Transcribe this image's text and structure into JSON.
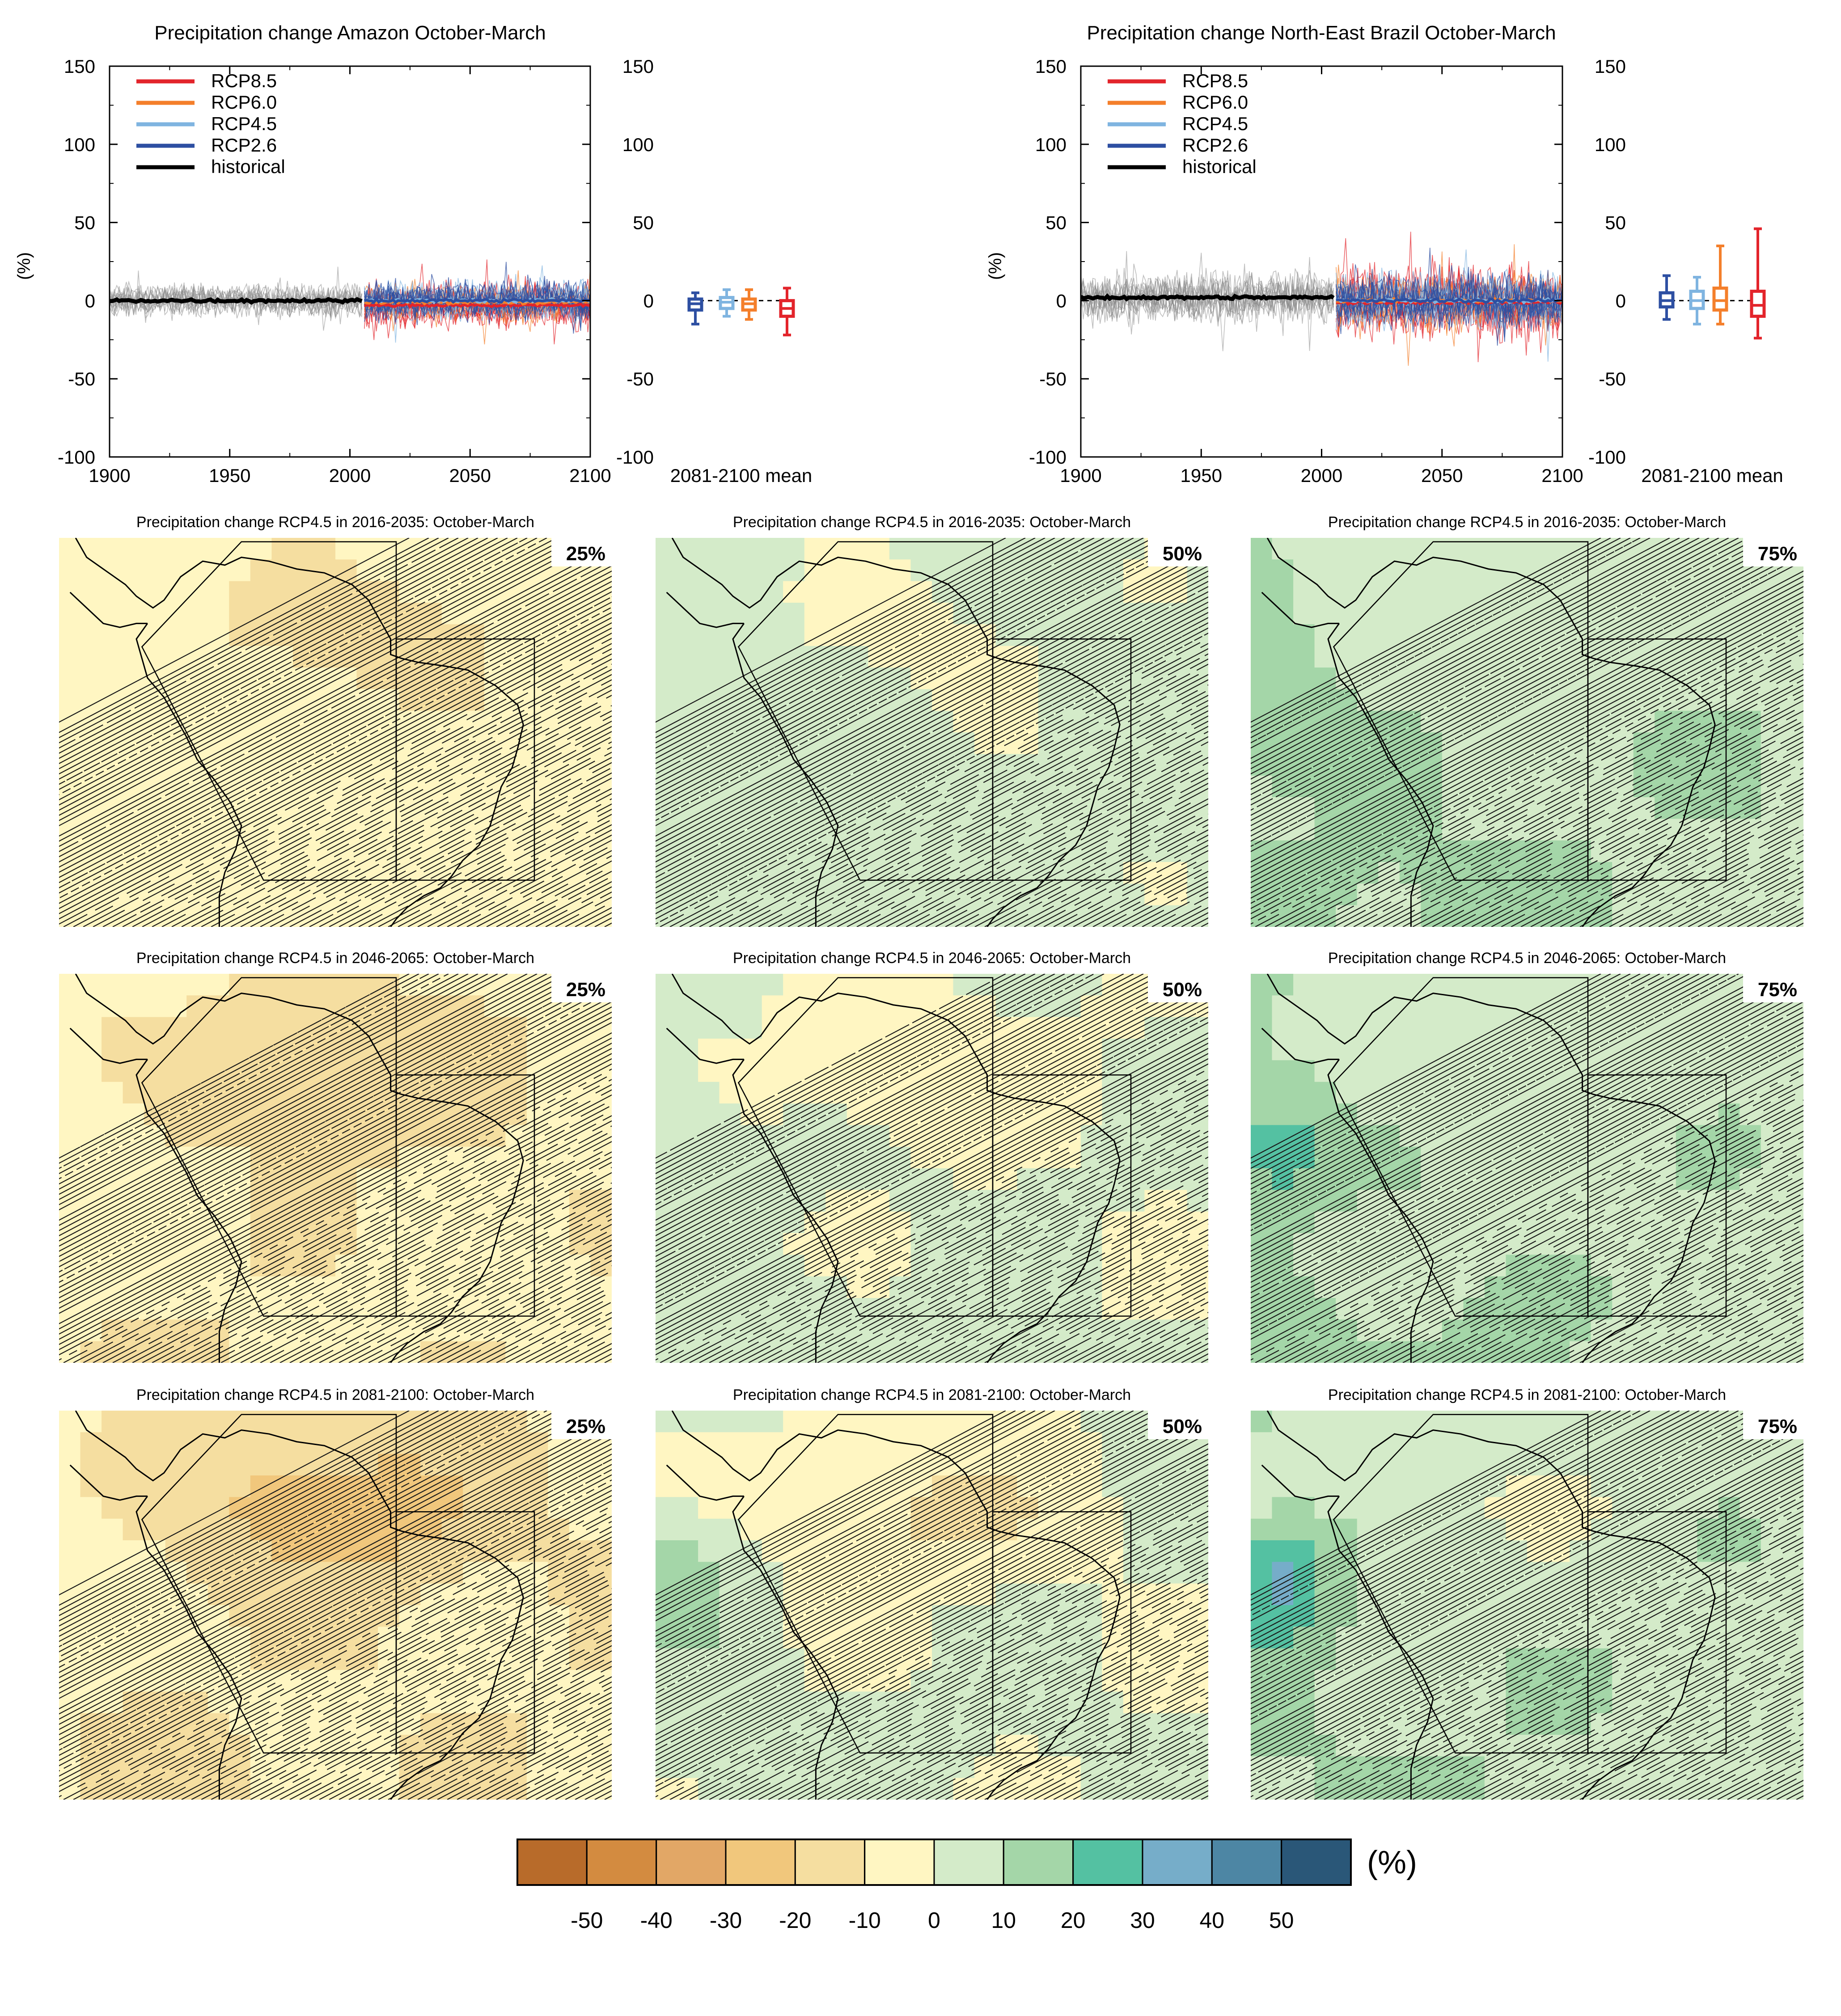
{
  "chart_data": [
    {
      "type": "line",
      "title": "Precipitation change Amazon October-March",
      "ylabel": "(%)",
      "xlim": [
        1900,
        2100
      ],
      "ylim": [
        -100,
        150
      ],
      "x_ticks": [
        "1900",
        "1950",
        "2000",
        "2050",
        "2100"
      ],
      "y_ticks": [
        "-100",
        "-50",
        "0",
        "50",
        "100",
        "150"
      ],
      "legend": {
        "placement": "top-left",
        "entries": [
          "RCP8.5",
          "RCP6.0",
          "RCP4.5",
          "RCP2.6",
          "historical"
        ]
      },
      "series": [
        {
          "name": "historical",
          "x_range": [
            1900,
            2005
          ],
          "mean": 0,
          "spread": 18
        },
        {
          "name": "RCP2.6",
          "x_range": [
            2006,
            2100
          ],
          "mean": 0,
          "spread": 22
        },
        {
          "name": "RCP4.5",
          "x_range": [
            2006,
            2100
          ],
          "mean": 0,
          "spread": 22
        },
        {
          "name": "RCP6.0",
          "x_range": [
            2006,
            2100
          ],
          "mean": -1,
          "spread": 22
        },
        {
          "name": "RCP8.5",
          "x_range": [
            2006,
            2100
          ],
          "mean": -3,
          "spread": 26
        }
      ],
      "boxplot_label": "2081-2100 mean",
      "boxplots": [
        {
          "name": "RCP2.6",
          "whisker": [
            -15,
            5
          ],
          "box": [
            -6,
            1
          ],
          "median": -2
        },
        {
          "name": "RCP4.5",
          "whisker": [
            -10,
            7
          ],
          "box": [
            -5,
            2
          ],
          "median": -1
        },
        {
          "name": "RCP6.0",
          "whisker": [
            -12,
            7
          ],
          "box": [
            -6,
            1
          ],
          "median": -2
        },
        {
          "name": "RCP8.5",
          "whisker": [
            -22,
            8
          ],
          "box": [
            -10,
            0
          ],
          "median": -5
        }
      ]
    },
    {
      "type": "line",
      "title": "Precipitation change North-East Brazil October-March",
      "ylabel": "(%)",
      "xlim": [
        1900,
        2100
      ],
      "ylim": [
        -100,
        150
      ],
      "x_ticks": [
        "1900",
        "1950",
        "2000",
        "2050",
        "2100"
      ],
      "y_ticks": [
        "-100",
        "-50",
        "0",
        "50",
        "100",
        "150"
      ],
      "legend": {
        "placement": "top-left",
        "entries": [
          "RCP8.5",
          "RCP6.0",
          "RCP4.5",
          "RCP2.6",
          "historical"
        ]
      },
      "series": [
        {
          "name": "historical",
          "x_range": [
            1900,
            2005
          ],
          "mean": 2,
          "spread": 28
        },
        {
          "name": "RCP2.6",
          "x_range": [
            2006,
            2100
          ],
          "mean": 0,
          "spread": 30
        },
        {
          "name": "RCP4.5",
          "x_range": [
            2006,
            2100
          ],
          "mean": 0,
          "spread": 32
        },
        {
          "name": "RCP6.0",
          "x_range": [
            2006,
            2100
          ],
          "mean": 0,
          "spread": 34
        },
        {
          "name": "RCP8.5",
          "x_range": [
            2006,
            2100
          ],
          "mean": -1,
          "spread": 40
        }
      ],
      "boxplot_label": "2081-2100 mean",
      "boxplots": [
        {
          "name": "RCP2.6",
          "whisker": [
            -12,
            16
          ],
          "box": [
            -4,
            5
          ],
          "median": 0
        },
        {
          "name": "RCP4.5",
          "whisker": [
            -15,
            15
          ],
          "box": [
            -5,
            6
          ],
          "median": 0
        },
        {
          "name": "RCP6.0",
          "whisker": [
            -15,
            35
          ],
          "box": [
            -6,
            8
          ],
          "median": 0
        },
        {
          "name": "RCP8.5",
          "whisker": [
            -24,
            46
          ],
          "box": [
            -10,
            6
          ],
          "median": -3
        }
      ]
    },
    {
      "type": "heatmap",
      "colorbar": {
        "unit": "(%)",
        "tick_labels": [
          "-50",
          "-40",
          "-30",
          "-20",
          "-10",
          "0",
          "10",
          "20",
          "30",
          "40",
          "50"
        ],
        "colors": [
          "#b86b2a",
          "#d38b40",
          "#e2a766",
          "#f1c77c",
          "#f5dea0",
          "#fff6c2",
          "#d4ebc9",
          "#a4d6a8",
          "#54c1a2",
          "#76adc9",
          "#4d86a4",
          "#2a5778"
        ]
      },
      "panels": [
        {
          "title": "Precipitation change RCP4.5 in 2016-2035: October-March",
          "percentile": "25%"
        },
        {
          "title": "Precipitation change RCP4.5 in 2016-2035: October-March",
          "percentile": "50%"
        },
        {
          "title": "Precipitation change RCP4.5 in 2016-2035: October-March",
          "percentile": "75%"
        },
        {
          "title": "Precipitation change RCP4.5 in 2046-2065: October-March",
          "percentile": "25%"
        },
        {
          "title": "Precipitation change RCP4.5 in 2046-2065: October-March",
          "percentile": "50%"
        },
        {
          "title": "Precipitation change RCP4.5 in 2046-2065: October-March",
          "percentile": "75%"
        },
        {
          "title": "Precipitation change RCP4.5 in 2081-2100: October-March",
          "percentile": "25%"
        },
        {
          "title": "Precipitation change RCP4.5 in 2081-2100: October-March",
          "percentile": "50%"
        },
        {
          "title": "Precipitation change RCP4.5 in 2081-2100: October-March",
          "percentile": "75%"
        }
      ]
    }
  ],
  "colors": {
    "RCP8.5": "#e3242b",
    "RCP6.0": "#f47f2b",
    "RCP4.5": "#7fb4e0",
    "RCP2.6": "#2d4fa2",
    "historical": "#000000"
  }
}
